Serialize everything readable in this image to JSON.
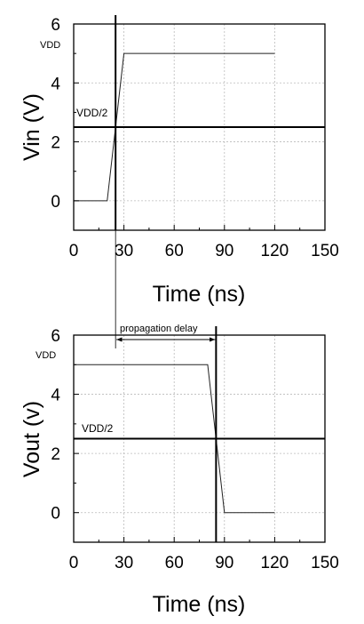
{
  "chart_data": [
    {
      "type": "line",
      "xlabel": "Time (ns)",
      "ylabel": "Vin (V)",
      "xlim": [
        0,
        150
      ],
      "ylim": [
        -1,
        6
      ],
      "x_ticks": [
        0,
        30,
        60,
        90,
        120,
        150
      ],
      "y_ticks": [
        0,
        2,
        4,
        6
      ],
      "grid": true,
      "series": [
        {
          "x": [
            0,
            20,
            30,
            120
          ],
          "y": [
            0,
            0,
            5,
            5
          ]
        }
      ],
      "reference_lines": {
        "vertical_x": 25,
        "horizontal_y": 2.5
      },
      "annotations": {
        "vdd": "VDD",
        "vdd_half": "VDD/2"
      }
    },
    {
      "type": "line",
      "xlabel": "Time (ns)",
      "ylabel": "Vout (v)",
      "xlim": [
        0,
        150
      ],
      "ylim": [
        -1,
        6
      ],
      "x_ticks": [
        0,
        30,
        60,
        90,
        120,
        150
      ],
      "y_ticks": [
        0,
        2,
        4,
        6
      ],
      "grid": true,
      "series": [
        {
          "x": [
            0,
            80,
            90,
            120
          ],
          "y": [
            5,
            5,
            0,
            0
          ]
        }
      ],
      "reference_lines": {
        "vertical_x": 85,
        "horizontal_y": 2.5
      },
      "annotations": {
        "vdd": "VDD",
        "vdd_half": "VDD/2",
        "propagation_delay": "propagation delay"
      }
    }
  ]
}
